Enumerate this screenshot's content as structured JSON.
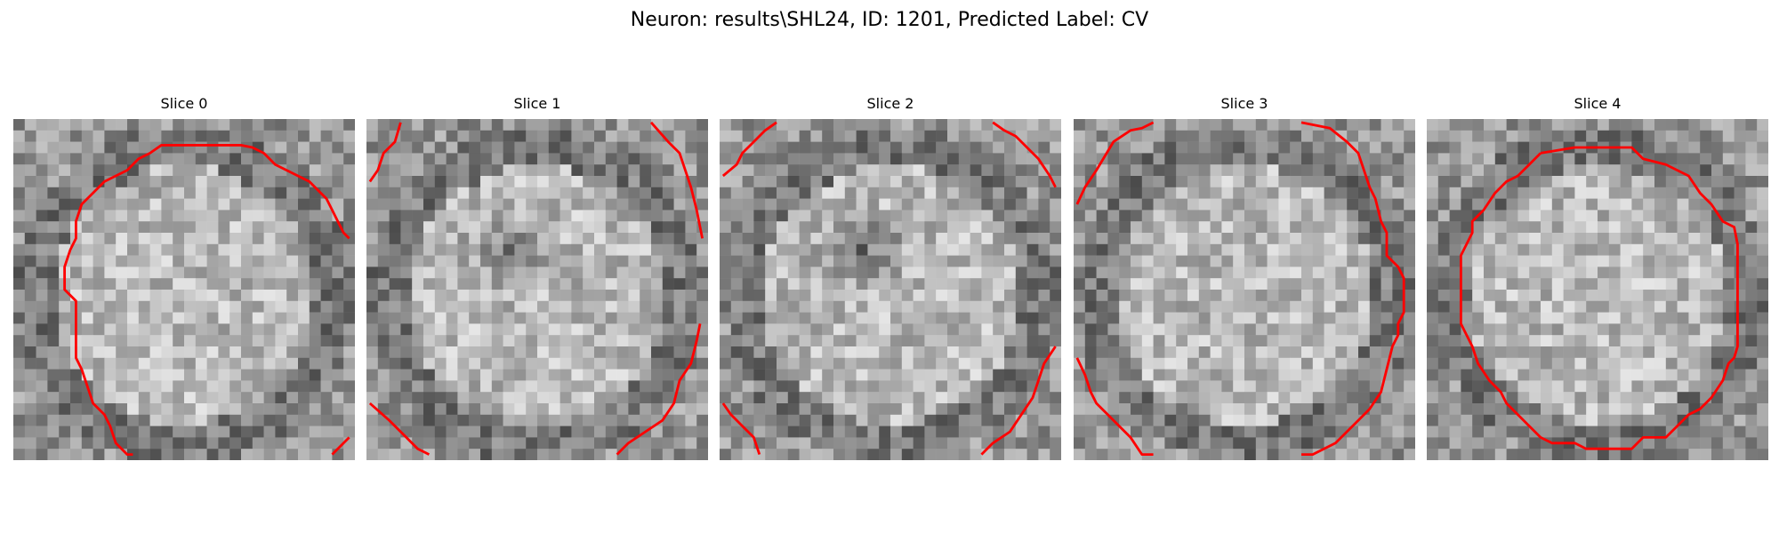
{
  "figure": {
    "title": "Neuron: results\\SHL24, ID: 1201, Predicted Label: CV"
  },
  "panels": [
    {
      "title": "Slice 0",
      "seed": 11,
      "dark_center": false
    },
    {
      "title": "Slice 1",
      "seed": 23,
      "dark_center": true
    },
    {
      "title": "Slice 2",
      "seed": 37,
      "dark_center": true
    },
    {
      "title": "Slice 3",
      "seed": 41,
      "dark_center": false
    },
    {
      "title": "Slice 4",
      "seed": 53,
      "dark_center": false
    }
  ],
  "colors": {
    "contour": "#ff0000",
    "background": "#ffffff"
  }
}
